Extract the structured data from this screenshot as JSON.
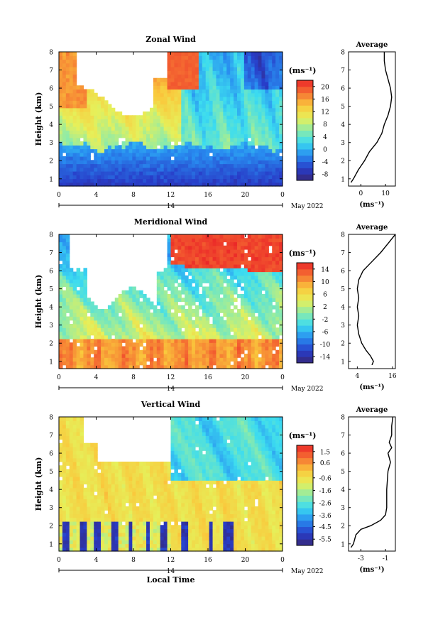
{
  "chart_data": [
    {
      "type": "heatmap",
      "title": "Zonal Wind",
      "ylabel": "Height (km)",
      "xlabel": "",
      "units": "(ms⁻¹)",
      "ylim": [
        0.6,
        8
      ],
      "xlim": [
        0,
        24
      ],
      "x_ticks": [
        "0",
        "4",
        "8",
        "12",
        "16",
        "20",
        "0"
      ],
      "y_ticks": [
        "1",
        "2",
        "3",
        "4",
        "5",
        "6",
        "7",
        "8"
      ],
      "date_day": "14",
      "date_label": "May 2022",
      "colorbar_ticks": [
        "20",
        "16",
        "12",
        "8",
        "4",
        "0",
        "-4",
        "-8"
      ],
      "colorbar_range": [
        -10,
        22
      ],
      "profile": {
        "title": "Average",
        "xlabel": "(ms⁻¹)",
        "x_ticks": [
          "0",
          "10"
        ],
        "xlim": [
          -5,
          14
        ],
        "heights": [
          0.8,
          1.0,
          1.5,
          2.0,
          2.5,
          3.0,
          3.5,
          4.0,
          4.5,
          5.0,
          5.5,
          6.0,
          6.5,
          7.0,
          7.5,
          8.0
        ],
        "values": [
          -4.0,
          -3.0,
          -1.0,
          1.5,
          3.5,
          6.5,
          8.5,
          9.5,
          11.0,
          12.0,
          12.5,
          12.0,
          11.0,
          10.0,
          9.5,
          9.5
        ]
      }
    },
    {
      "type": "heatmap",
      "title": "Meridional Wind",
      "ylabel": "Height (km)",
      "xlabel": "",
      "units": "(ms⁻¹)",
      "ylim": [
        0.6,
        8
      ],
      "xlim": [
        0,
        24
      ],
      "x_ticks": [
        "0",
        "4",
        "8",
        "12",
        "16",
        "20",
        "0"
      ],
      "y_ticks": [
        "1",
        "2",
        "3",
        "4",
        "5",
        "6",
        "7",
        "8"
      ],
      "date_day": "14",
      "date_label": "May 2022",
      "colorbar_ticks": [
        "14",
        "10",
        "6",
        "2",
        "-2",
        "-6",
        "-10",
        "-14"
      ],
      "colorbar_range": [
        -16,
        16
      ],
      "profile": {
        "title": "Average",
        "xlabel": "(ms⁻¹)",
        "x_ticks": [
          "4",
          "16"
        ],
        "xlim": [
          1,
          17
        ],
        "heights": [
          0.8,
          1.0,
          1.3,
          1.6,
          2.0,
          2.5,
          3.0,
          3.5,
          4.0,
          4.5,
          5.0,
          5.5,
          6.0,
          6.5,
          7.0,
          7.5,
          8.0
        ],
        "values": [
          9.0,
          9.5,
          8.5,
          7.0,
          5.5,
          4.5,
          4.0,
          4.5,
          4.0,
          4.5,
          4.0,
          4.5,
          6.0,
          9.0,
          12.0,
          14.5,
          17.0
        ]
      }
    },
    {
      "type": "heatmap",
      "title": "Vertical Wind",
      "ylabel": "Height (km)",
      "xlabel": "Local Time",
      "units": "(ms⁻¹)",
      "ylim": [
        0.6,
        8
      ],
      "xlim": [
        0,
        24
      ],
      "x_ticks": [
        "0",
        "4",
        "8",
        "12",
        "16",
        "20",
        "0"
      ],
      "y_ticks": [
        "1",
        "2",
        "3",
        "4",
        "5",
        "6",
        "7",
        "8"
      ],
      "date_day": "14",
      "date_label": "May 2022",
      "colorbar_ticks": [
        "1.5",
        "0.6",
        "-0.6",
        "-1.6",
        "-2.6",
        "-3.6",
        "-4.5",
        "-5.5"
      ],
      "colorbar_range": [
        -6,
        2
      ],
      "profile": {
        "title": "Average",
        "xlabel": "(ms⁻¹)",
        "x_ticks": [
          "-3",
          "-1"
        ],
        "xlim": [
          -4,
          -0.2
        ],
        "heights": [
          0.8,
          1.0,
          1.5,
          1.8,
          2.0,
          2.3,
          2.6,
          3.0,
          4.0,
          5.0,
          5.5,
          6.0,
          6.3,
          6.6,
          7.0,
          7.5,
          8.0
        ],
        "values": [
          -3.8,
          -3.6,
          -3.4,
          -3.0,
          -2.2,
          -1.4,
          -1.0,
          -0.9,
          -0.9,
          -0.8,
          -0.6,
          -0.8,
          -0.5,
          -0.7,
          -0.5,
          -0.5,
          -0.4
        ]
      }
    }
  ]
}
